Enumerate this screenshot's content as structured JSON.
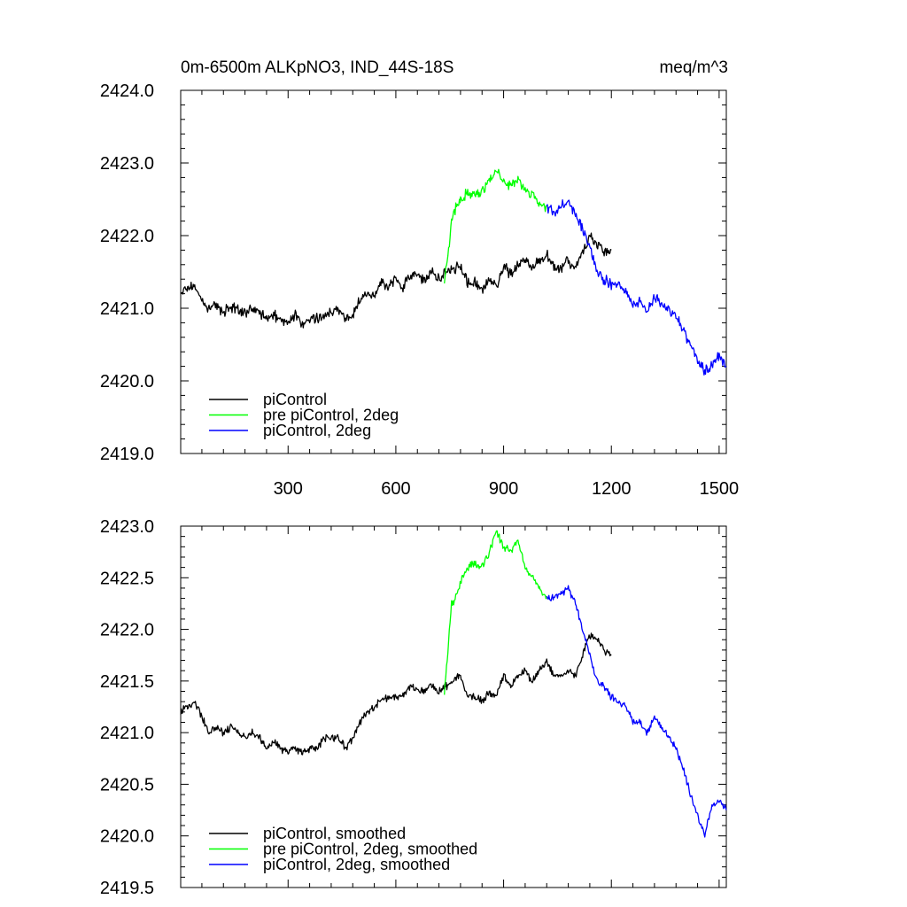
{
  "page": {
    "title_left": "0m-6500m ALKpNO3, IND_44S-18S",
    "title_right": "meq/m^3"
  },
  "chart_data": [
    {
      "type": "line",
      "panel": "top",
      "title": "0m-6500m ALKpNO3, IND_44S-18S",
      "units": "meq/m^3",
      "xlim": [
        1,
        1520
      ],
      "ylim": [
        2419.0,
        2424.0
      ],
      "xticks": [
        300,
        600,
        900,
        1200,
        1500
      ],
      "yticks": [
        2419.0,
        2420.0,
        2421.0,
        2422.0,
        2423.0,
        2424.0
      ],
      "ytick_labels": [
        "2419.0",
        "2420.0",
        "2421.0",
        "2422.0",
        "2423.0",
        "2424.0"
      ],
      "xtick_labels": [
        "300",
        "600",
        "900",
        "1200",
        "1500"
      ],
      "legend_position": "bottom-left",
      "series": [
        {
          "name": "piControl",
          "color": "#000000",
          "x": [
            1,
            20,
            40,
            60,
            80,
            100,
            120,
            140,
            160,
            180,
            200,
            220,
            240,
            260,
            280,
            300,
            320,
            340,
            360,
            380,
            400,
            420,
            440,
            460,
            480,
            500,
            520,
            540,
            560,
            580,
            600,
            620,
            640,
            660,
            680,
            700,
            720,
            740,
            760,
            780,
            800,
            820,
            840,
            860,
            880,
            900,
            920,
            940,
            960,
            980,
            1000,
            1020,
            1040,
            1060,
            1080,
            1100,
            1120,
            1140,
            1160,
            1180,
            1200
          ],
          "values": [
            2421.2,
            2421.3,
            2421.3,
            2421.1,
            2421.0,
            2421.05,
            2420.95,
            2421.0,
            2421.0,
            2420.9,
            2421.0,
            2420.95,
            2420.85,
            2420.9,
            2420.85,
            2420.8,
            2420.9,
            2420.75,
            2420.85,
            2420.85,
            2420.9,
            2420.95,
            2421.0,
            2420.85,
            2420.9,
            2421.1,
            2421.2,
            2421.2,
            2421.35,
            2421.3,
            2421.4,
            2421.3,
            2421.45,
            2421.45,
            2421.4,
            2421.5,
            2421.4,
            2421.5,
            2421.55,
            2421.6,
            2421.35,
            2421.35,
            2421.25,
            2421.4,
            2421.3,
            2421.6,
            2421.45,
            2421.6,
            2421.65,
            2421.55,
            2421.65,
            2421.75,
            2421.55,
            2421.55,
            2421.65,
            2421.55,
            2421.75,
            2422.0,
            2421.9,
            2421.8,
            2421.8
          ]
        },
        {
          "name": "pre piControl, 2deg",
          "color": "#00ff00",
          "x": [
            735,
            745,
            755,
            765,
            780,
            800,
            820,
            840,
            860,
            880,
            900,
            920,
            940,
            960,
            980,
            1000,
            1020
          ],
          "values": [
            2421.4,
            2421.7,
            2422.2,
            2422.35,
            2422.5,
            2422.6,
            2422.55,
            2422.6,
            2422.75,
            2422.9,
            2422.75,
            2422.7,
            2422.8,
            2422.6,
            2422.55,
            2422.45,
            2422.4
          ]
        },
        {
          "name": "piControl, 2deg",
          "color": "#0000ff",
          "x": [
            1020,
            1040,
            1060,
            1080,
            1100,
            1120,
            1140,
            1160,
            1180,
            1200,
            1220,
            1240,
            1260,
            1280,
            1300,
            1320,
            1340,
            1360,
            1380,
            1400,
            1420,
            1440,
            1460,
            1480,
            1500,
            1520
          ],
          "values": [
            2422.4,
            2422.3,
            2422.4,
            2422.45,
            2422.3,
            2422.1,
            2421.85,
            2421.5,
            2421.4,
            2421.3,
            2421.35,
            2421.25,
            2421.05,
            2421.1,
            2420.95,
            2421.15,
            2421.05,
            2421.0,
            2420.9,
            2420.7,
            2420.5,
            2420.3,
            2420.15,
            2420.2,
            2420.35,
            2420.2
          ]
        }
      ]
    },
    {
      "type": "line",
      "panel": "bottom",
      "xlim": [
        1,
        1520
      ],
      "ylim": [
        2419.5,
        2423.0
      ],
      "yticks": [
        2419.5,
        2420.0,
        2420.5,
        2421.0,
        2421.5,
        2422.0,
        2422.5,
        2423.0
      ],
      "ytick_labels": [
        "2419.5",
        "2420.0",
        "2420.5",
        "2421.0",
        "2421.5",
        "2422.0",
        "2422.5",
        "2423.0"
      ],
      "xticks": [
        300,
        600,
        900,
        1200,
        1500
      ],
      "legend_position": "bottom-left",
      "series": [
        {
          "name": "piControl, smoothed",
          "color": "#000000",
          "x": [
            1,
            20,
            40,
            60,
            80,
            100,
            120,
            140,
            160,
            180,
            200,
            220,
            240,
            260,
            280,
            300,
            320,
            340,
            360,
            380,
            400,
            420,
            440,
            460,
            480,
            500,
            520,
            540,
            560,
            580,
            600,
            620,
            640,
            660,
            680,
            700,
            720,
            740,
            760,
            780,
            800,
            820,
            840,
            860,
            880,
            900,
            920,
            940,
            960,
            980,
            1000,
            1020,
            1040,
            1060,
            1080,
            1100,
            1120,
            1140,
            1160,
            1180,
            1200
          ],
          "values": [
            2421.2,
            2421.25,
            2421.3,
            2421.15,
            2421.0,
            2421.05,
            2421.0,
            2421.05,
            2421.0,
            2420.95,
            2421.0,
            2420.95,
            2420.85,
            2420.9,
            2420.85,
            2420.8,
            2420.85,
            2420.8,
            2420.85,
            2420.85,
            2420.95,
            2420.95,
            2420.95,
            2420.85,
            2420.95,
            2421.1,
            2421.2,
            2421.25,
            2421.3,
            2421.35,
            2421.35,
            2421.35,
            2421.45,
            2421.4,
            2421.4,
            2421.45,
            2421.4,
            2421.45,
            2421.5,
            2421.55,
            2421.35,
            2421.35,
            2421.3,
            2421.4,
            2421.35,
            2421.55,
            2421.45,
            2421.55,
            2421.6,
            2421.5,
            2421.6,
            2421.7,
            2421.55,
            2421.55,
            2421.6,
            2421.55,
            2421.75,
            2421.95,
            2421.9,
            2421.8,
            2421.75
          ]
        },
        {
          "name": "pre piControl, 2deg, smoothed",
          "color": "#00ff00",
          "x": [
            735,
            745,
            755,
            765,
            780,
            800,
            820,
            840,
            860,
            880,
            900,
            920,
            940,
            960,
            980,
            1000,
            1020
          ],
          "values": [
            2421.4,
            2421.8,
            2422.25,
            2422.3,
            2422.45,
            2422.6,
            2422.65,
            2422.6,
            2422.75,
            2422.95,
            2422.8,
            2422.75,
            2422.85,
            2422.6,
            2422.5,
            2422.4,
            2422.3
          ]
        },
        {
          "name": "piControl, 2deg, smoothed",
          "color": "#0000ff",
          "x": [
            1020,
            1040,
            1060,
            1080,
            1100,
            1120,
            1140,
            1160,
            1180,
            1200,
            1220,
            1240,
            1260,
            1280,
            1300,
            1320,
            1340,
            1360,
            1380,
            1400,
            1420,
            1440,
            1460,
            1480,
            1500,
            1520
          ],
          "values": [
            2422.3,
            2422.3,
            2422.35,
            2422.4,
            2422.25,
            2422.0,
            2421.75,
            2421.5,
            2421.45,
            2421.35,
            2421.3,
            2421.25,
            2421.1,
            2421.1,
            2421.0,
            2421.15,
            2421.05,
            2420.95,
            2420.85,
            2420.65,
            2420.4,
            2420.2,
            2420.0,
            2420.3,
            2420.35,
            2420.25
          ]
        }
      ]
    }
  ]
}
